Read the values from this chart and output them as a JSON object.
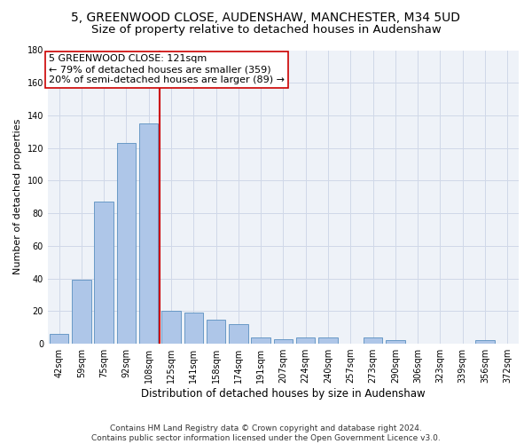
{
  "title1": "5, GREENWOOD CLOSE, AUDENSHAW, MANCHESTER, M34 5UD",
  "title2": "Size of property relative to detached houses in Audenshaw",
  "xlabel": "Distribution of detached houses by size in Audenshaw",
  "ylabel": "Number of detached properties",
  "categories": [
    "42sqm",
    "59sqm",
    "75sqm",
    "92sqm",
    "108sqm",
    "125sqm",
    "141sqm",
    "158sqm",
    "174sqm",
    "191sqm",
    "207sqm",
    "224sqm",
    "240sqm",
    "257sqm",
    "273sqm",
    "290sqm",
    "306sqm",
    "323sqm",
    "339sqm",
    "356sqm",
    "372sqm"
  ],
  "values": [
    6,
    39,
    87,
    123,
    135,
    20,
    19,
    15,
    12,
    4,
    3,
    4,
    4,
    0,
    4,
    2,
    0,
    0,
    0,
    2,
    0
  ],
  "bar_color": "#aec6e8",
  "bar_edge_color": "#5a8fc0",
  "vline_x": 4.5,
  "vline_color": "#cc0000",
  "annotation_line1": "5 GREENWOOD CLOSE: 121sqm",
  "annotation_line2": "← 79% of detached houses are smaller (359)",
  "annotation_line3": "20% of semi-detached houses are larger (89) →",
  "annotation_box_color": "#ffffff",
  "annotation_box_edge": "#cc0000",
  "ylim": [
    0,
    180
  ],
  "yticks": [
    0,
    20,
    40,
    60,
    80,
    100,
    120,
    140,
    160,
    180
  ],
  "grid_color": "#d0d8e8",
  "background_color": "#eef2f8",
  "footer": "Contains HM Land Registry data © Crown copyright and database right 2024.\nContains public sector information licensed under the Open Government Licence v3.0.",
  "title1_fontsize": 10,
  "title2_fontsize": 9.5,
  "xlabel_fontsize": 8.5,
  "ylabel_fontsize": 8,
  "tick_fontsize": 7,
  "ann_fontsize": 8,
  "footer_fontsize": 6.5
}
